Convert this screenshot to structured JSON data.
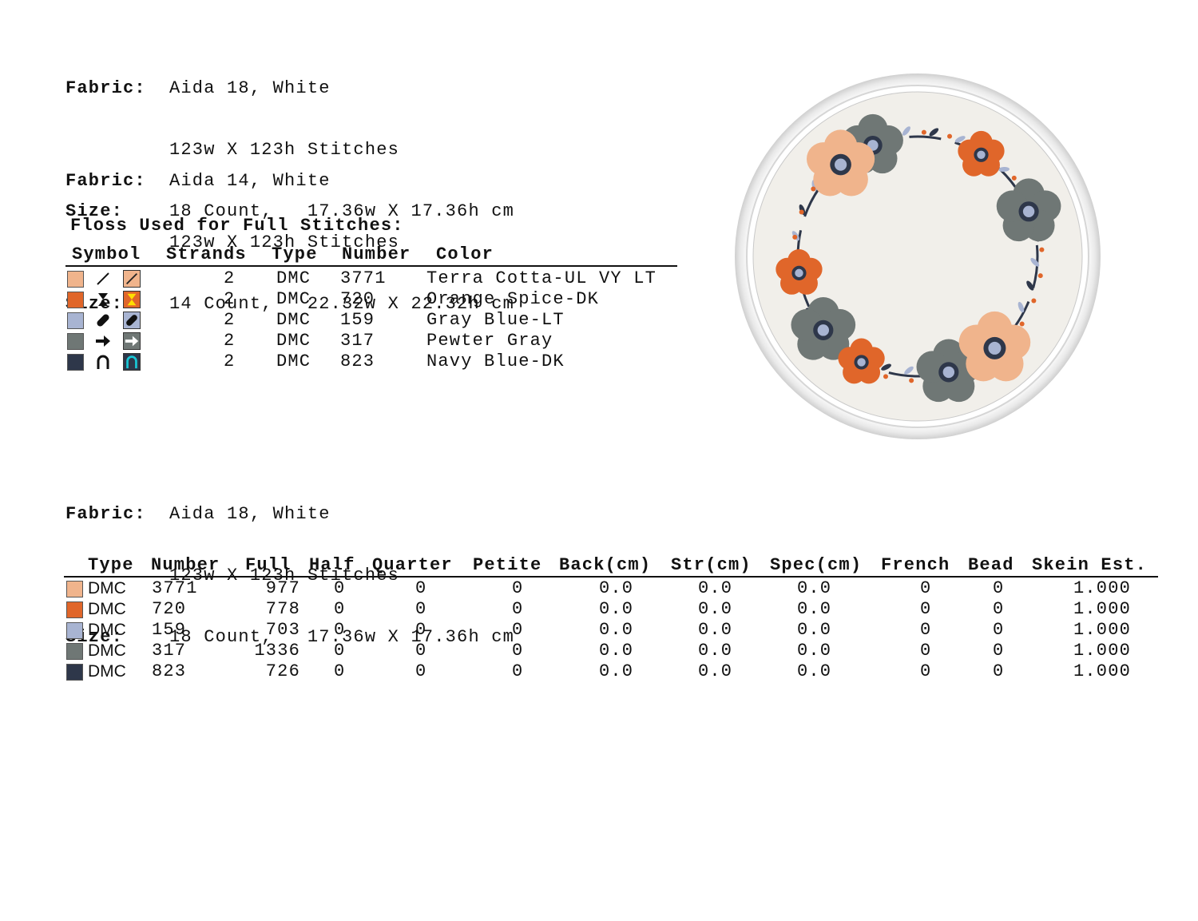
{
  "fabric_blocks": [
    {
      "fabric_label": "Fabric:",
      "fabric_value": "Aida 18, White",
      "stitches": "123w X 123h Stitches",
      "size_label": "Size:",
      "size_value": "18 Count,   17.36w X 17.36h cm"
    },
    {
      "fabric_label": "Fabric:",
      "fabric_value": "Aida 14, White",
      "stitches": "123w X 123h Stitches",
      "size_label": "Size:",
      "size_value": "14 Count,   22.32w X 22.32h cm"
    },
    {
      "fabric_label": "Fabric:",
      "fabric_value": "Aida 18, White",
      "stitches": "123w X 123h Stitches",
      "size_label": "Size:",
      "size_value": "18 Count,   17.36w X 17.36h cm"
    }
  ],
  "floss": {
    "title": "Floss Used for Full Stitches:",
    "headers": {
      "symbol": "Symbol",
      "strands": "Strands",
      "type": "Type",
      "number": "Number",
      "color": "Color"
    },
    "rows": [
      {
        "swatch": "#F0B48C",
        "symbol": "slash-icon",
        "strands": "2",
        "type": "DMC",
        "number": "3771",
        "color": "Terra Cotta-UL VY LT"
      },
      {
        "swatch": "#E0662A",
        "symbol": "hourglass-icon",
        "strands": "2",
        "type": "DMC",
        "number": "720",
        "color": "Orange Spice-DK"
      },
      {
        "swatch": "#A8B4D2",
        "symbol": "pill-icon",
        "strands": "2",
        "type": "DMC",
        "number": "159",
        "color": "Gray Blue-LT"
      },
      {
        "swatch": "#6F7775",
        "symbol": "arrow-right-icon",
        "strands": "2",
        "type": "DMC",
        "number": "317",
        "color": "Pewter Gray"
      },
      {
        "swatch": "#2E374A",
        "symbol": "arch-icon",
        "strands": "2",
        "type": "DMC",
        "number": "823",
        "color": "Navy Blue-DK"
      }
    ]
  },
  "totals": {
    "headers": {
      "type": "Type",
      "number": "Number",
      "full": "Full",
      "half": "Half",
      "quarter": "Quarter",
      "petite": "Petite",
      "back": "Back(cm)",
      "str": "Str(cm)",
      "spec": "Spec(cm)",
      "french": "French",
      "bead": "Bead",
      "skein": "Skein Est."
    },
    "rows": [
      {
        "swatch": "#F0B48C",
        "type": "DMC",
        "number": "3771",
        "full": "977",
        "half": "0",
        "quarter": "0",
        "petite": "0",
        "back": "0.0",
        "str": "0.0",
        "spec": "0.0",
        "french": "0",
        "bead": "0",
        "skein": "1.000"
      },
      {
        "swatch": "#E0662A",
        "type": "DMC",
        "number": "720",
        "full": "778",
        "half": "0",
        "quarter": "0",
        "petite": "0",
        "back": "0.0",
        "str": "0.0",
        "spec": "0.0",
        "french": "0",
        "bead": "0",
        "skein": "1.000"
      },
      {
        "swatch": "#A8B4D2",
        "type": "DMC",
        "number": "159",
        "full": "703",
        "half": "0",
        "quarter": "0",
        "petite": "0",
        "back": "0.0",
        "str": "0.0",
        "spec": "0.0",
        "french": "0",
        "bead": "0",
        "skein": "1.000"
      },
      {
        "swatch": "#6F7775",
        "type": "DMC",
        "number": "317",
        "full": "1336",
        "half": "0",
        "quarter": "0",
        "petite": "0",
        "back": "0.0",
        "str": "0.0",
        "spec": "0.0",
        "french": "0",
        "bead": "0",
        "skein": "1.000"
      },
      {
        "swatch": "#2E374A",
        "type": "DMC",
        "number": "823",
        "full": "726",
        "half": "0",
        "quarter": "0",
        "petite": "0",
        "back": "0.0",
        "str": "0.0",
        "spec": "0.0",
        "french": "0",
        "bead": "0",
        "skein": "1.000"
      }
    ]
  },
  "preview": {
    "description_icon": "floral-wreath-hoop-icon"
  }
}
